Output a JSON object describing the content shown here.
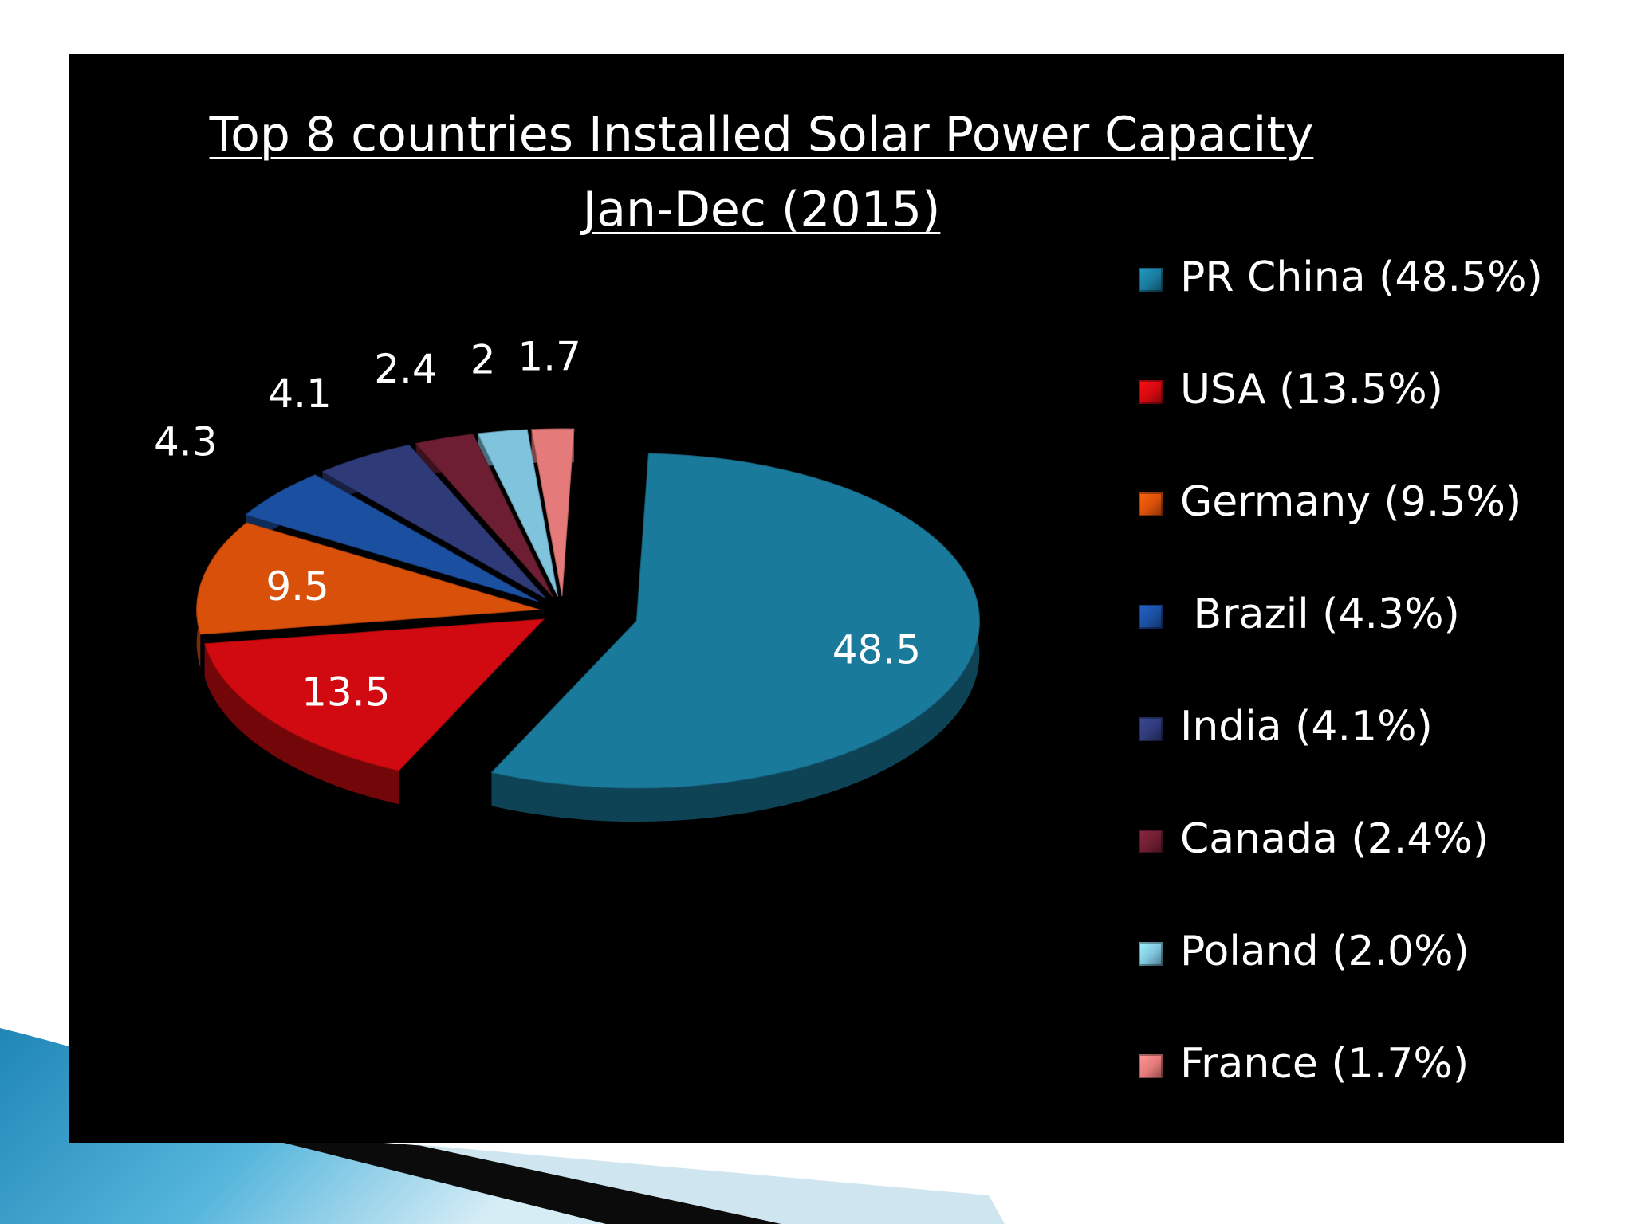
{
  "chart_data": {
    "type": "pie",
    "title": "Top 8 countries Installed Solar Power Capacity",
    "subtitle": "Jan-Dec (2015)",
    "categories": [
      "PR China",
      "USA",
      "Germany",
      "Brazil",
      "India",
      "Canada",
      "Poland",
      "France"
    ],
    "values": [
      48.5,
      13.5,
      9.5,
      4.3,
      4.1,
      2.4,
      2,
      1.7
    ],
    "data_labels": [
      "48.5",
      "13.5",
      "9.5",
      "4.3",
      "4.1",
      "2.4",
      "2",
      "1.7"
    ],
    "legend": {
      "placement": "right",
      "entries": [
        "PR China (48.5%)",
        "USA (13.5%)",
        "Germany (9.5%)",
        " Brazil (4.3%)",
        "India (4.1%)",
        "Canada (2.4%)",
        "Poland (2.0%)",
        "France (1.7%)"
      ]
    },
    "colors": [
      "#1a7a9c",
      "#d00a10",
      "#d8500a",
      "#1b4fa0",
      "#2f3a78",
      "#6e1e32",
      "#7fc4dc",
      "#e57a7a"
    ],
    "style": "3d-exploded-pie"
  }
}
